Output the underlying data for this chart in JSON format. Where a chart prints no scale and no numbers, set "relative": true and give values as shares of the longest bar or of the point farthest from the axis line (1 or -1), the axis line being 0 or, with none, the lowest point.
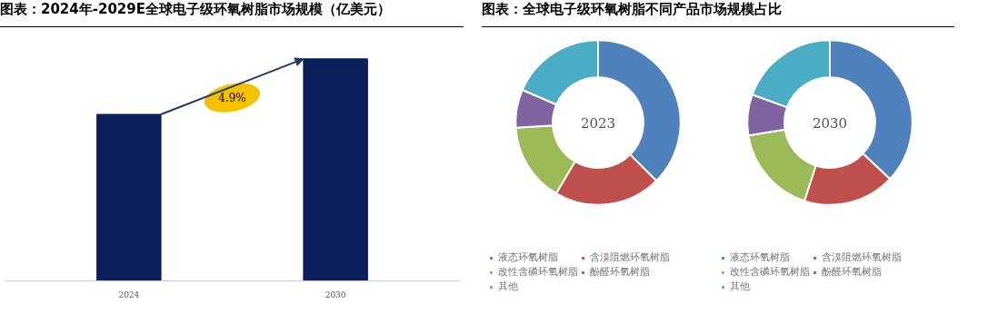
{
  "chart_data": [
    {
      "type": "bar",
      "title": "图表：2024年-2029E全球电子级环氧树脂市场规模（亿美元）",
      "categories": [
        "2024",
        "2030"
      ],
      "values": [
        0.75,
        1
      ],
      "color": "#0b1f5c",
      "relative": true,
      "grid": false,
      "annotations": [
        "4.9%"
      ]
    },
    {
      "type": "donut",
      "title": "图表：全球电子级环氧树脂不同产品市场规模占比",
      "categories": [
        "液态环氧树脂",
        "含溴阻燃环氧树脂",
        "改性含磷环氧树脂",
        "酚醛环氧树脂",
        "其他"
      ],
      "values": [
        37.5,
        21,
        15.5,
        7.5,
        18.5
      ],
      "colors": [
        "#4f81bd",
        "#c0504d",
        "#9bbb59",
        "#8064a2",
        "#4bacc6"
      ],
      "legend": "bottom",
      "annotations": [
        "2023"
      ]
    },
    {
      "type": "donut",
      "categories": [
        "液态环氧树脂",
        "含溴阻燃环氧树脂",
        "改性含磷环氧树脂",
        "酚醛环氧树脂",
        "其他"
      ],
      "values": [
        37,
        18,
        17.5,
        8,
        19.5
      ],
      "colors": [
        "#4f81bd",
        "#c0504d",
        "#9bbb59",
        "#8064a2",
        "#4bacc6"
      ],
      "legend": "bottom",
      "annotations": [
        "2030"
      ]
    }
  ]
}
